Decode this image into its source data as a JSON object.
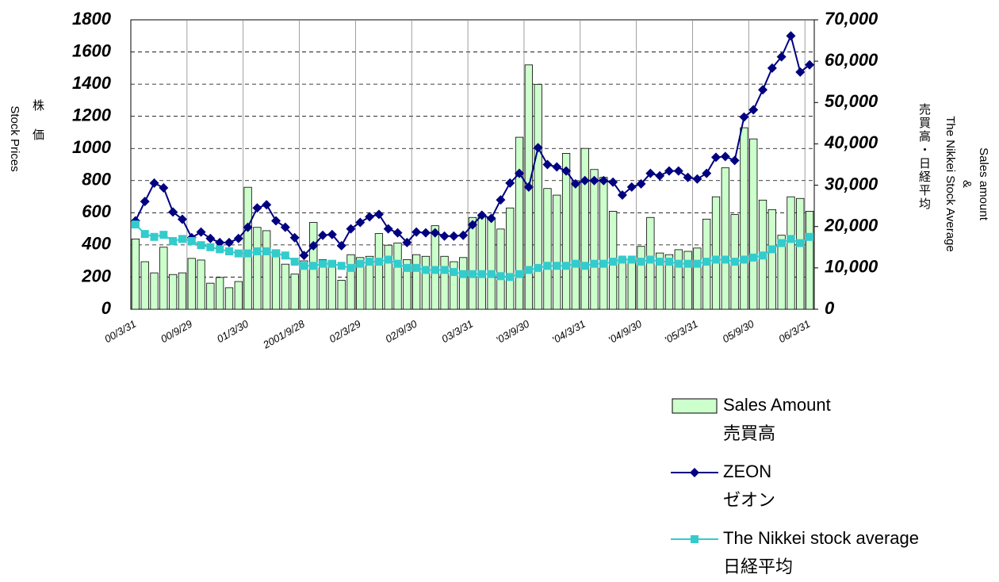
{
  "chart_data": {
    "type": "combo",
    "y_label": "Stock Prices",
    "y_label_ja": "株価",
    "y2_label": [
      "Sales amount",
      "&",
      "The Nikkei Stock Average"
    ],
    "y2_label_ja": "売買高・日経平均",
    "categories": [
      "00/3/31",
      null,
      null,
      null,
      null,
      null,
      "00/9/29",
      null,
      null,
      null,
      null,
      null,
      "01/3/30",
      null,
      null,
      null,
      null,
      null,
      "2001/9/28",
      null,
      null,
      null,
      null,
      null,
      "02/3/29",
      null,
      null,
      null,
      null,
      null,
      "02/9/30",
      null,
      null,
      null,
      null,
      null,
      "03/3/31",
      null,
      null,
      null,
      null,
      null,
      "'03/9/30",
      null,
      null,
      null,
      null,
      null,
      "'04/3/31",
      null,
      null,
      null,
      null,
      null,
      "'04/9/30",
      null,
      null,
      null,
      null,
      null,
      "'05/3/31",
      null,
      null,
      null,
      null,
      null,
      "05/9/30",
      null,
      null,
      null,
      null,
      null,
      "06/3/31"
    ],
    "series": [
      {
        "name": "Sales Amount",
        "label_ja": "売買高",
        "kind": "bar",
        "axis": "y2",
        "color": "#ccffcc",
        "values": [
          17000,
          11500,
          8800,
          15000,
          8400,
          8800,
          12300,
          11900,
          6300,
          7700,
          5200,
          6700,
          29500,
          19800,
          19000,
          14400,
          10900,
          8500,
          11700,
          21000,
          12000,
          11700,
          7000,
          13200,
          12500,
          12800,
          18300,
          15500,
          16000,
          12000,
          13200,
          12800,
          20200,
          12800,
          11500,
          12500,
          22200,
          22500,
          21800,
          19400,
          24500,
          41600,
          59100,
          54400,
          29200,
          27600,
          37700,
          31100,
          38900,
          33800,
          31900,
          23700,
          12400,
          11700,
          15200,
          22200,
          13600,
          13200,
          14400,
          14000,
          14800,
          21800,
          27200,
          34200,
          22900,
          43900,
          41200,
          26400,
          24100,
          17900,
          27200,
          26800,
          23700
        ]
      },
      {
        "name": "ZEON",
        "label_ja": "ゼオン",
        "kind": "line",
        "marker": "diamond",
        "color": "#000080",
        "values": [
          550,
          670,
          785,
          755,
          605,
          560,
          445,
          480,
          440,
          415,
          415,
          440,
          510,
          630,
          650,
          550,
          510,
          445,
          335,
          395,
          460,
          465,
          395,
          500,
          540,
          575,
          590,
          500,
          475,
          415,
          480,
          475,
          475,
          455,
          455,
          460,
          525,
          585,
          565,
          680,
          785,
          845,
          760,
          1005,
          900,
          885,
          860,
          780,
          800,
          800,
          800,
          790,
          710,
          760,
          780,
          845,
          830,
          860,
          860,
          820,
          810,
          845,
          945,
          950,
          925,
          1195,
          1240,
          1365,
          1500,
          1570,
          1700,
          1475,
          1520
        ]
      },
      {
        "name": "The Nikkei stock average",
        "label_ja": "日経平均",
        "kind": "line",
        "marker": "square",
        "axis": "y2",
        "color": "#33cccc",
        "values": [
          20500,
          18200,
          17500,
          18000,
          16500,
          17000,
          16500,
          15500,
          15000,
          14500,
          14000,
          13500,
          13500,
          14000,
          14000,
          13500,
          13000,
          11500,
          10500,
          10500,
          11000,
          11000,
          10500,
          10000,
          11000,
          11500,
          11500,
          12000,
          11000,
          10000,
          10000,
          9500,
          9500,
          9500,
          9000,
          8500,
          8500,
          8500,
          8500,
          8000,
          7800,
          8500,
          9500,
          10000,
          10500,
          10500,
          10500,
          11000,
          10500,
          11000,
          11000,
          11500,
          12000,
          12000,
          11500,
          12000,
          11500,
          11500,
          11000,
          11000,
          11000,
          11500,
          12000,
          12000,
          11500,
          12000,
          12500,
          13000,
          14500,
          16000,
          17000,
          16000,
          17500
        ]
      }
    ],
    "ylim": [
      0,
      1800
    ],
    "yticks": [
      0,
      200,
      400,
      600,
      800,
      1000,
      1200,
      1400,
      1600,
      1800
    ],
    "y2lim": [
      0,
      70000
    ],
    "y2ticks": [
      0,
      {
        "value": 10000,
        "label": "10,000"
      },
      {
        "value": 20000,
        "label": "20,000"
      },
      {
        "value": 30000,
        "label": "30,000"
      },
      {
        "value": 40000,
        "label": "40,000"
      },
      {
        "value": 50000,
        "label": "50,000"
      },
      {
        "value": 60000,
        "label": "60,000"
      },
      {
        "value": 70000,
        "label": "70,000"
      }
    ],
    "grid": true
  }
}
